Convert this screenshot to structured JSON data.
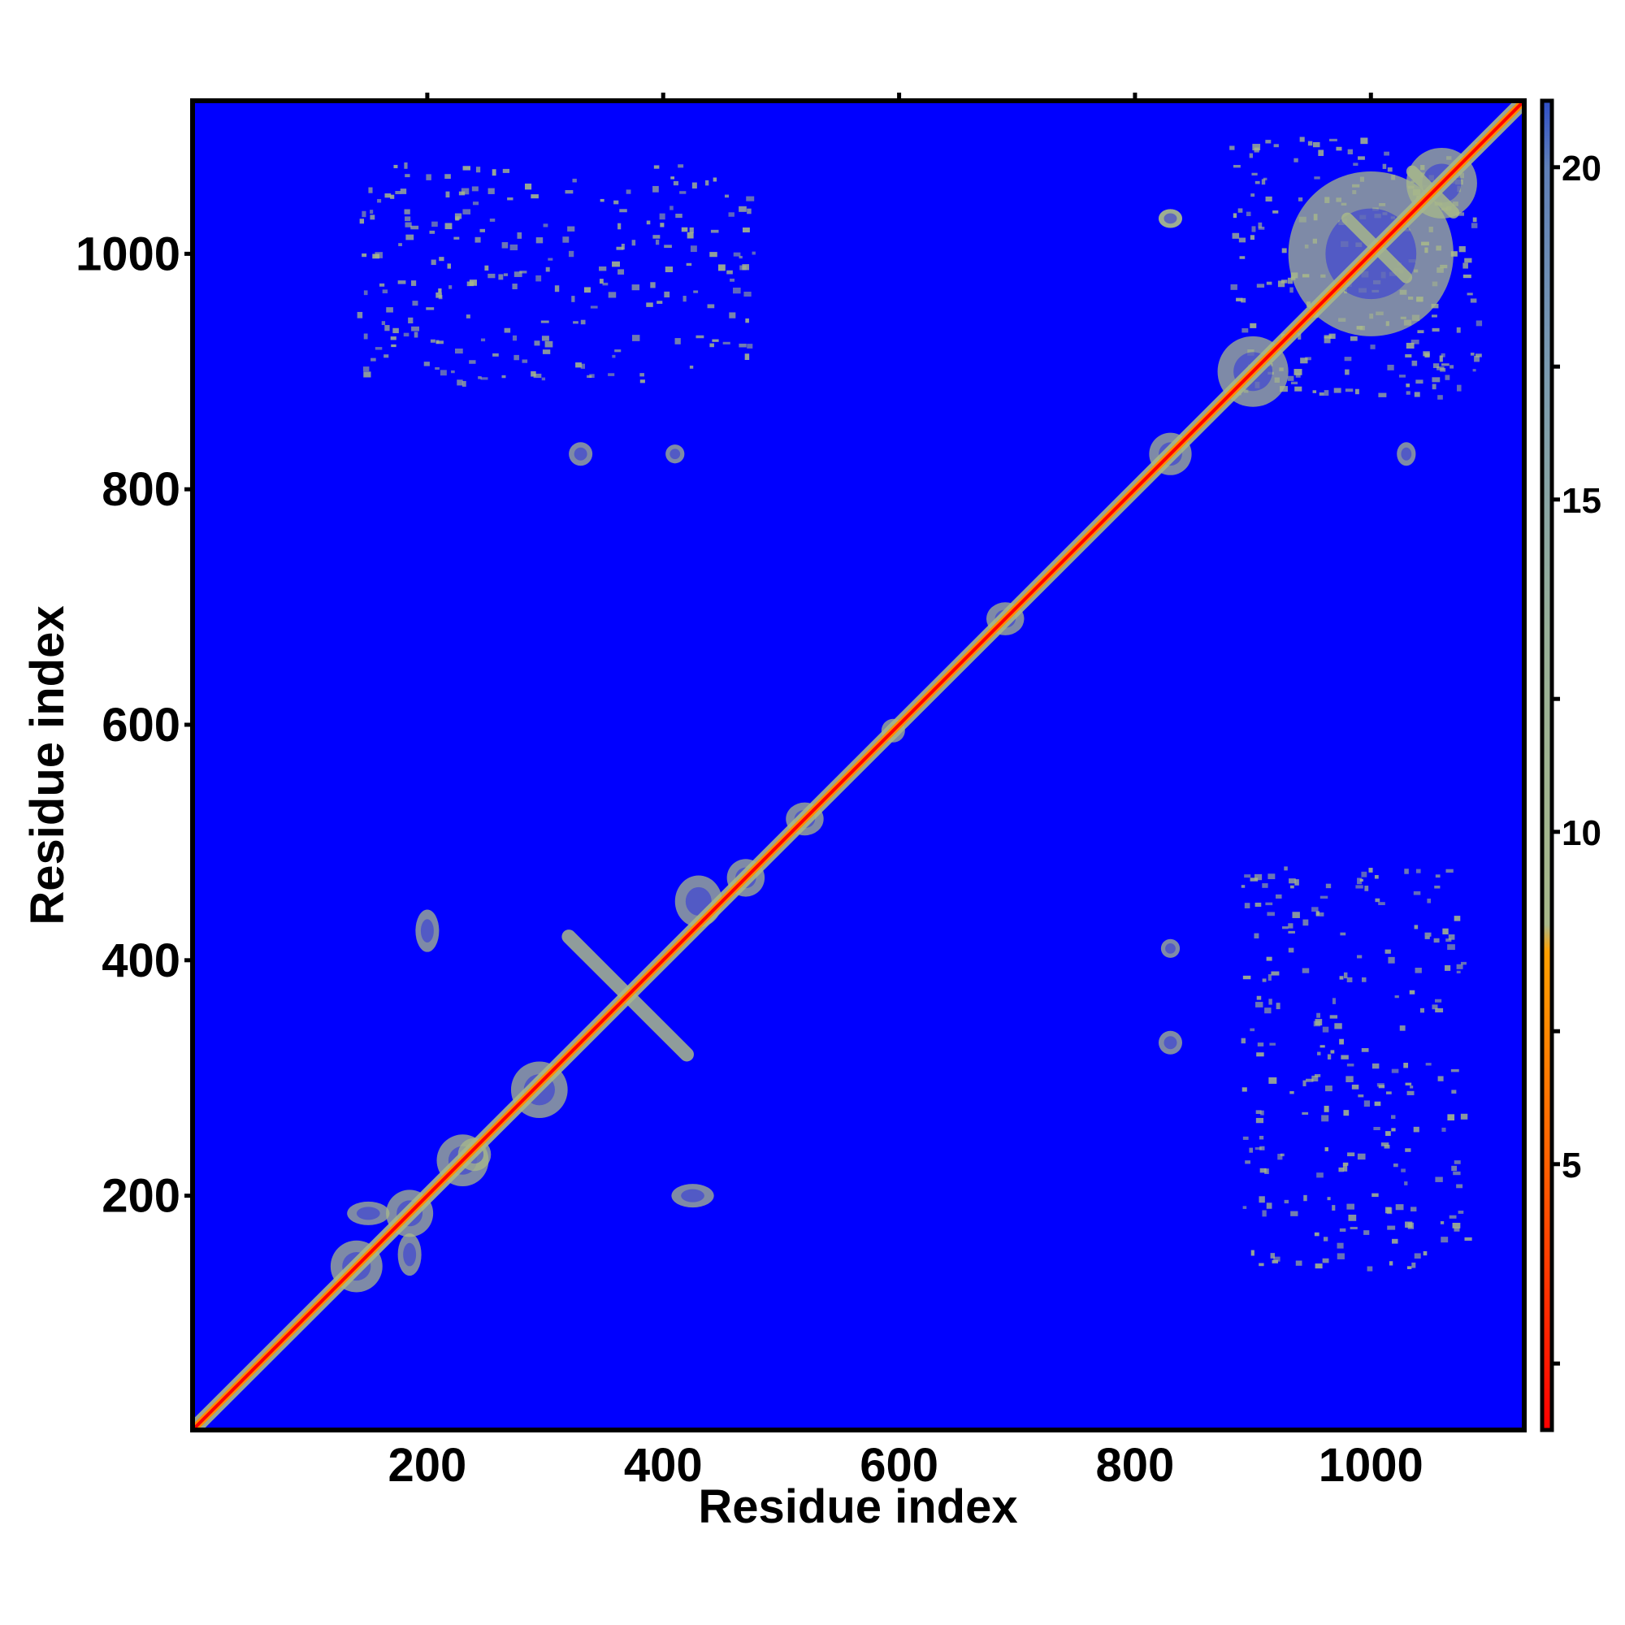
{
  "chart_data": {
    "type": "heatmap",
    "title": "",
    "xlabel": "Residue index",
    "ylabel": "Residue index",
    "xlim": [
      1,
      1130
    ],
    "ylim": [
      1,
      1130
    ],
    "xticks": [
      200,
      400,
      600,
      800,
      1000
    ],
    "yticks": [
      200,
      400,
      600,
      800,
      1000
    ],
    "xtick_labels": [
      "200",
      "400",
      "600",
      "800",
      "1000"
    ],
    "ytick_labels": [
      "200",
      "400",
      "600",
      "800",
      "1000"
    ],
    "colorbar": {
      "range": [
        1,
        21
      ],
      "ticks": [
        5,
        10,
        15,
        20
      ],
      "tick_labels": [
        "5",
        "10",
        "15",
        "20"
      ],
      "minor_ticks": [
        2,
        7,
        12,
        17
      ]
    },
    "colors": {
      "background": "#0000ff",
      "contact_near": "#ff0000",
      "contact_mid": "#ff8c00",
      "contact_far": "#a8b88a",
      "axis": "#000000"
    },
    "grid": false,
    "legend": "colorbar-right",
    "diagonal": {
      "from": 1,
      "to": 1130
    },
    "contact_blobs": [
      {
        "x": 140,
        "y": 140,
        "rx": 22,
        "ry": 22,
        "level": 12
      },
      {
        "x": 185,
        "y": 185,
        "rx": 20,
        "ry": 20,
        "level": 12
      },
      {
        "x": 150,
        "y": 185,
        "rx": 18,
        "ry": 10,
        "level": 14
      },
      {
        "x": 185,
        "y": 150,
        "rx": 10,
        "ry": 18,
        "level": 14
      },
      {
        "x": 230,
        "y": 230,
        "rx": 22,
        "ry": 22,
        "level": 12
      },
      {
        "x": 295,
        "y": 290,
        "rx": 24,
        "ry": 24,
        "level": 13
      },
      {
        "x": 200,
        "y": 425,
        "rx": 10,
        "ry": 18,
        "level": 15
      },
      {
        "x": 425,
        "y": 200,
        "rx": 18,
        "ry": 10,
        "level": 15
      },
      {
        "x": 240,
        "y": 235,
        "rx": 14,
        "ry": 14,
        "level": 13
      },
      {
        "x": 430,
        "y": 450,
        "rx": 20,
        "ry": 22,
        "level": 12
      },
      {
        "x": 470,
        "y": 470,
        "rx": 16,
        "ry": 16,
        "level": 12
      },
      {
        "x": 520,
        "y": 520,
        "rx": 16,
        "ry": 14,
        "level": 11
      },
      {
        "x": 595,
        "y": 595,
        "rx": 10,
        "ry": 10,
        "level": 11
      },
      {
        "x": 690,
        "y": 690,
        "rx": 16,
        "ry": 14,
        "level": 12
      },
      {
        "x": 830,
        "y": 830,
        "rx": 18,
        "ry": 18,
        "level": 12
      },
      {
        "x": 900,
        "y": 900,
        "rx": 30,
        "ry": 30,
        "level": 12
      },
      {
        "x": 1000,
        "y": 1000,
        "rx": 70,
        "ry": 70,
        "level": 13
      },
      {
        "x": 1060,
        "y": 1060,
        "rx": 30,
        "ry": 30,
        "level": 12
      },
      {
        "x": 830,
        "y": 330,
        "rx": 10,
        "ry": 10,
        "level": 15
      },
      {
        "x": 330,
        "y": 830,
        "rx": 10,
        "ry": 10,
        "level": 15
      },
      {
        "x": 830,
        "y": 410,
        "rx": 8,
        "ry": 8,
        "level": 15
      },
      {
        "x": 410,
        "y": 830,
        "rx": 8,
        "ry": 8,
        "level": 15
      },
      {
        "x": 1030,
        "y": 830,
        "rx": 8,
        "ry": 10,
        "level": 15
      },
      {
        "x": 830,
        "y": 1030,
        "rx": 10,
        "ry": 8,
        "level": 15
      },
      {
        "x": 830,
        "y": 1030,
        "rx": 10,
        "ry": 8,
        "level": 15
      }
    ],
    "anti_diagonal_bands": [
      {
        "x1": 320,
        "y1": 420,
        "x2": 420,
        "y2": 320,
        "width": 12,
        "level": 13
      },
      {
        "x1": 1035,
        "y1": 1070,
        "x2": 1070,
        "y2": 1035,
        "width": 10,
        "level": 13
      },
      {
        "x1": 980,
        "y1": 1030,
        "x2": 1030,
        "y2": 980,
        "width": 10,
        "level": 13
      }
    ],
    "sparse_regions": [
      {
        "x": [
          140,
          480
        ],
        "y": [
          890,
          1080
        ]
      },
      {
        "x": [
          890,
          1080
        ],
        "y": [
          140,
          480
        ]
      },
      {
        "x": [
          880,
          1090
        ],
        "y": [
          880,
          1100
        ]
      }
    ]
  }
}
